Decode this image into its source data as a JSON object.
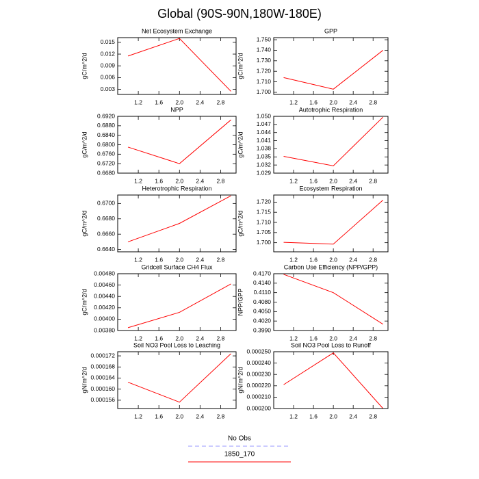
{
  "title": "Global (90S-90N,180W-180E)",
  "legend": {
    "series": [
      {
        "name": "No Obs",
        "color": "#9999ff",
        "dashed": true
      },
      {
        "name": "1850_170",
        "color": "#ff0000",
        "dashed": false
      }
    ]
  },
  "chart_data": [
    {
      "type": "line",
      "title": "Net Ecosystem Exchange",
      "ylabel": "gC/m^2/d",
      "color": "#ff0000",
      "x": [
        1,
        2,
        3
      ],
      "values": [
        0.0115,
        0.016,
        0.0025
      ],
      "xlim": [
        0.8,
        3.1
      ],
      "xticks": [
        1.2,
        1.6,
        {
          "value": 2,
          "label": "2.0"
        },
        2.4,
        2.8
      ],
      "ylim": [
        0.0017,
        0.0162
      ],
      "yticks": [
        0.003,
        0.006,
        0.009,
        0.012,
        0.015
      ]
    },
    {
      "type": "line",
      "title": "GPP",
      "ylabel": "gC/m^2/d",
      "color": "#ff0000",
      "x": [
        1,
        2,
        3
      ],
      "values": [
        1.714,
        1.703,
        1.74
      ],
      "xlim": [
        0.8,
        3.1
      ],
      "xticks": [
        1.2,
        1.6,
        {
          "value": 2,
          "label": "2.0"
        },
        2.4,
        2.8
      ],
      "ylim": [
        1.698,
        1.752
      ],
      "yticks": [
        {
          "value": 1.7,
          "label": "1.700"
        },
        {
          "value": 1.71,
          "label": "1.710"
        },
        {
          "value": 1.72,
          "label": "1.720"
        },
        {
          "value": 1.73,
          "label": "1.730"
        },
        {
          "value": 1.74,
          "label": "1.740"
        },
        {
          "value": 1.75,
          "label": "1.750"
        }
      ]
    },
    {
      "type": "line",
      "title": "NPP",
      "ylabel": "gC/m^2/d",
      "color": "#ff0000",
      "x": [
        1,
        2,
        3
      ],
      "values": [
        0.679,
        0.672,
        0.6905
      ],
      "xlim": [
        0.8,
        3.1
      ],
      "xticks": [
        1.2,
        1.6,
        {
          "value": 2,
          "label": "2.0"
        },
        2.4,
        2.8
      ],
      "ylim": [
        0.668,
        0.692
      ],
      "yticks": [
        {
          "value": 0.668,
          "label": "0.6680"
        },
        {
          "value": 0.672,
          "label": "0.6720"
        },
        {
          "value": 0.676,
          "label": "0.6760"
        },
        {
          "value": 0.68,
          "label": "0.6800"
        },
        {
          "value": 0.684,
          "label": "0.6840"
        },
        {
          "value": 0.688,
          "label": "0.6880"
        },
        {
          "value": 0.692,
          "label": "0.6920"
        }
      ]
    },
    {
      "type": "line",
      "title": "Autotrophic Respiration",
      "ylabel": "gC/m^2/d",
      "color": "#ff0000",
      "x": [
        1,
        2,
        3
      ],
      "values": [
        1.0352,
        1.0317,
        1.0497
      ],
      "xlim": [
        0.8,
        3.1
      ],
      "xticks": [
        1.2,
        1.6,
        {
          "value": 2,
          "label": "2.0"
        },
        2.4,
        2.8
      ],
      "ylim": [
        1.029,
        1.05
      ],
      "yticks": [
        1.029,
        1.032,
        1.035,
        1.038,
        1.041,
        1.044,
        1.047,
        {
          "value": 1.05,
          "label": "1.050"
        }
      ]
    },
    {
      "type": "line",
      "title": "Heterotrophic Respiration",
      "ylabel": "gC/m^2/d",
      "color": "#ff0000",
      "x": [
        1,
        2,
        3
      ],
      "values": [
        0.665,
        0.6674,
        0.671
      ],
      "xlim": [
        0.8,
        3.1
      ],
      "xticks": [
        1.2,
        1.6,
        {
          "value": 2,
          "label": "2.0"
        },
        2.4,
        2.8
      ],
      "ylim": [
        0.6637,
        0.6711
      ],
      "yticks": [
        {
          "value": 0.664,
          "label": "0.6640"
        },
        {
          "value": 0.666,
          "label": "0.6660"
        },
        {
          "value": 0.668,
          "label": "0.6680"
        },
        {
          "value": 0.67,
          "label": "0.6700"
        }
      ]
    },
    {
      "type": "line",
      "title": "Ecosystem Respiration",
      "ylabel": "gC/m^2/d",
      "color": "#ff0000",
      "x": [
        1,
        2,
        3
      ],
      "values": [
        1.7002,
        1.6993,
        1.721
      ],
      "xlim": [
        0.8,
        3.1
      ],
      "xticks": [
        1.2,
        1.6,
        {
          "value": 2,
          "label": "2.0"
        },
        2.4,
        2.8
      ],
      "ylim": [
        1.6955,
        1.7235
      ],
      "yticks": [
        {
          "value": 1.7,
          "label": "1.700"
        },
        1.705,
        {
          "value": 1.71,
          "label": "1.710"
        },
        1.715,
        {
          "value": 1.72,
          "label": "1.720"
        }
      ]
    },
    {
      "type": "line",
      "title": "Gridcell Surface CH4 Flux",
      "ylabel": "gC/m^2/d",
      "color": "#ff0000",
      "x": [
        1,
        2,
        3
      ],
      "values": [
        0.00385,
        0.00412,
        0.00462
      ],
      "xlim": [
        0.8,
        3.1
      ],
      "xticks": [
        1.2,
        1.6,
        {
          "value": 2,
          "label": "2.0"
        },
        2.4,
        2.8
      ],
      "ylim": [
        0.0038,
        0.0048
      ],
      "yticks": [
        {
          "value": 0.0038,
          "label": "0.00380"
        },
        {
          "value": 0.004,
          "label": "0.00400"
        },
        {
          "value": 0.0042,
          "label": "0.00420"
        },
        {
          "value": 0.0044,
          "label": "0.00440"
        },
        {
          "value": 0.0046,
          "label": "0.00460"
        },
        {
          "value": 0.0048,
          "label": "0.00480"
        }
      ]
    },
    {
      "type": "line",
      "title": "Carbon Use Efficiency (NPP/GPP)",
      "ylabel": "NPP/GPP",
      "color": "#ff0000",
      "x": [
        1,
        2,
        3
      ],
      "values": [
        0.4168,
        0.411,
        0.401
      ],
      "xlim": [
        0.8,
        3.1
      ],
      "xticks": [
        1.2,
        1.6,
        {
          "value": 2,
          "label": "2.0"
        },
        2.4,
        2.8
      ],
      "ylim": [
        0.399,
        0.417
      ],
      "yticks": [
        {
          "value": 0.399,
          "label": "0.3990"
        },
        {
          "value": 0.402,
          "label": "0.4020"
        },
        {
          "value": 0.405,
          "label": "0.4050"
        },
        {
          "value": 0.408,
          "label": "0.4080"
        },
        {
          "value": 0.411,
          "label": "0.4110"
        },
        {
          "value": 0.414,
          "label": "0.4140"
        },
        {
          "value": 0.417,
          "label": "0.4170"
        }
      ]
    },
    {
      "type": "line",
      "title": "Soil NO3 Pool Loss to Leaching",
      "ylabel": "gN/m^2/d",
      "color": "#ff0000",
      "x": [
        1,
        2,
        3
      ],
      "values": [
        0.0001625,
        0.0001553,
        0.0001728
      ],
      "xlim": [
        0.8,
        3.1
      ],
      "xticks": [
        1.2,
        1.6,
        {
          "value": 2,
          "label": "2.0"
        },
        2.4,
        2.8
      ],
      "ylim": [
        0.000153,
        0.0001735
      ],
      "yticks": [
        0.000156,
        {
          "value": 0.00016,
          "label": "0.000160"
        },
        0.000164,
        0.000168,
        0.000172
      ]
    },
    {
      "type": "line",
      "title": "Soil NO3 Pool Loss to Runoff",
      "ylabel": "gN/m^2/d",
      "color": "#ff0000",
      "x": [
        1,
        2,
        3
      ],
      "values": [
        0.000221,
        0.000249,
        0.0002
      ],
      "xlim": [
        0.8,
        3.1
      ],
      "xticks": [
        1.2,
        1.6,
        {
          "value": 2,
          "label": "2.0"
        },
        2.4,
        2.8
      ],
      "ylim": [
        0.0002,
        0.00025
      ],
      "yticks": [
        {
          "value": 0.0002,
          "label": "0.000200"
        },
        {
          "value": 0.00021,
          "label": "0.000210"
        },
        {
          "value": 0.00022,
          "label": "0.000220"
        },
        {
          "value": 0.00023,
          "label": "0.000230"
        },
        {
          "value": 0.00024,
          "label": "0.000240"
        },
        {
          "value": 0.00025,
          "label": "0.000250"
        }
      ]
    }
  ]
}
